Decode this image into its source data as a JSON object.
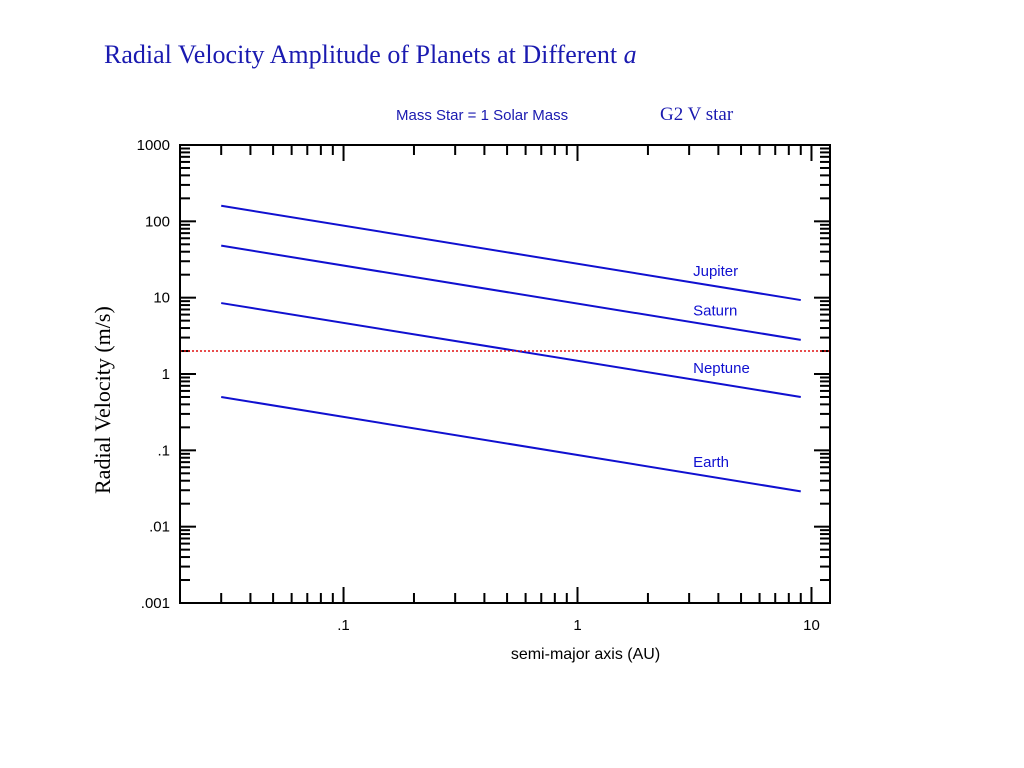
{
  "chart_data": {
    "type": "line",
    "title_main": "Radial Velocity Amplitude of Planets at Different ",
    "title_italic": "a",
    "subtitle": "Mass Star = 1 Solar Mass",
    "star_type": "G2 V star",
    "xlabel": "semi-major axis (AU)",
    "ylabel": "Radial Velocity (m/s)",
    "x_scale": "log",
    "y_scale": "log",
    "xlim": [
      0.02,
      12
    ],
    "ylim": [
      0.001,
      1000
    ],
    "x_ticks": [
      {
        "value": 0.1,
        "label": ".1"
      },
      {
        "value": 1,
        "label": "1"
      },
      {
        "value": 10,
        "label": "10"
      }
    ],
    "y_ticks": [
      {
        "value": 0.001,
        "label": ".001"
      },
      {
        "value": 0.01,
        "label": ".01"
      },
      {
        "value": 0.1,
        "label": ".1"
      },
      {
        "value": 1,
        "label": "1"
      },
      {
        "value": 10,
        "label": "10"
      },
      {
        "value": 100,
        "label": "100"
      },
      {
        "value": 1000,
        "label": "1000"
      }
    ],
    "grid": false,
    "series": [
      {
        "name": "Jupiter",
        "x": [
          0.03,
          9.0
        ],
        "y": [
          160,
          9.3
        ]
      },
      {
        "name": "Saturn",
        "x": [
          0.03,
          9.0
        ],
        "y": [
          48,
          2.8
        ]
      },
      {
        "name": "Neptune",
        "x": [
          0.03,
          9.0
        ],
        "y": [
          8.5,
          0.5
        ]
      },
      {
        "name": "Earth",
        "x": [
          0.03,
          9.0
        ],
        "y": [
          0.5,
          0.029
        ]
      }
    ],
    "series_label_x": 3.0,
    "reference_line": {
      "y": 2
    }
  },
  "colors": {
    "title": "#1a1ab0",
    "series": "#1010d0",
    "reference": "#e01010",
    "axis": "#000000"
  }
}
